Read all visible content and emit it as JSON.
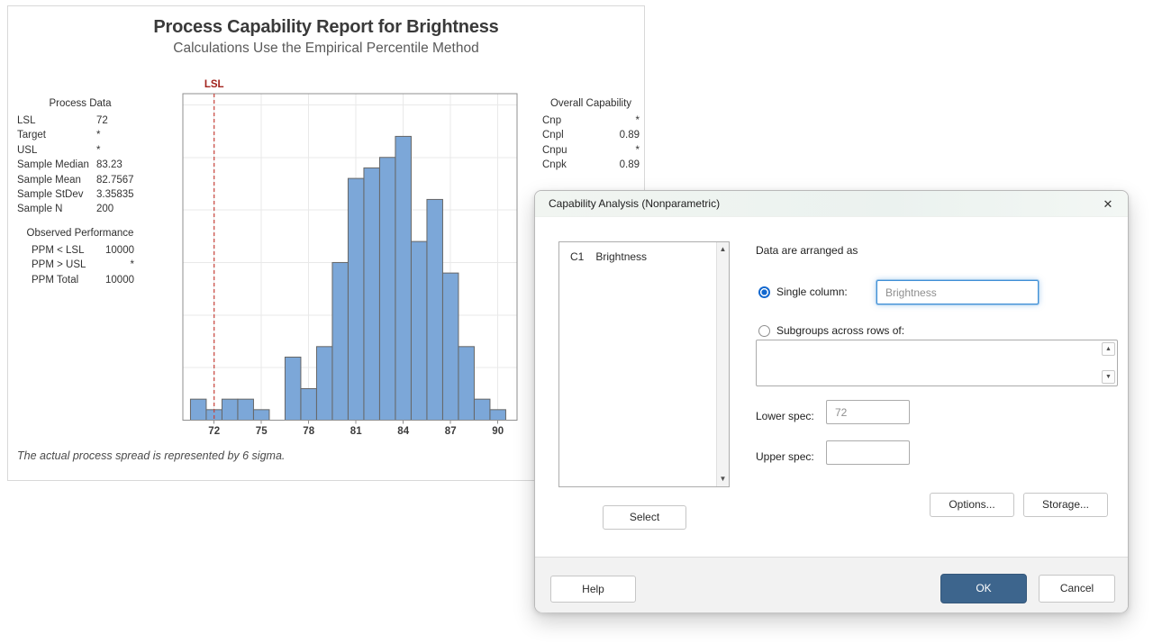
{
  "report": {
    "title": "Process Capability Report for Brightness",
    "subtitle": "Calculations Use the Empirical Percentile Method",
    "footnote": "The actual process spread is represented by 6 sigma.",
    "lsl_flag": "LSL",
    "process_data": {
      "header": "Process Data",
      "rows": [
        {
          "label": "LSL",
          "value": "72"
        },
        {
          "label": "Target",
          "value": "*"
        },
        {
          "label": "USL",
          "value": "*"
        },
        {
          "label": "Sample Median",
          "value": "83.23"
        },
        {
          "label": "Sample Mean",
          "value": "82.7567"
        },
        {
          "label": "Sample StDev",
          "value": "3.35835"
        },
        {
          "label": "Sample N",
          "value": "200"
        }
      ]
    },
    "observed_performance": {
      "header": "Observed Performance",
      "rows": [
        {
          "label": "PPM < LSL",
          "value": "10000"
        },
        {
          "label": "PPM > USL",
          "value": "*"
        },
        {
          "label": "PPM Total",
          "value": "10000"
        }
      ]
    },
    "overall_capability": {
      "header": "Overall Capability",
      "rows": [
        {
          "label": "Cnp",
          "value": "*"
        },
        {
          "label": "Cnpl",
          "value": "0.89"
        },
        {
          "label": "Cnpu",
          "value": "*"
        },
        {
          "label": "Cnpk",
          "value": "0.89"
        }
      ]
    }
  },
  "chart_data": {
    "type": "bar",
    "title": "Process Capability Report for Brightness",
    "subtitle": "Calculations Use the Empirical Percentile Method",
    "xlabel": "",
    "ylabel": "",
    "categories": [
      71,
      72,
      73,
      74,
      75,
      76,
      77,
      78,
      79,
      80,
      81,
      82,
      83,
      84,
      85,
      86,
      87,
      88,
      89,
      90
    ],
    "values": [
      2,
      1,
      2,
      2,
      1,
      0,
      6,
      3,
      7,
      15,
      23,
      24,
      25,
      27,
      17,
      21,
      14,
      7,
      2,
      1
    ],
    "bin_width": 1,
    "x_ticks": [
      72,
      75,
      78,
      81,
      84,
      87,
      90
    ],
    "y_gridline_step": 5,
    "ylim": [
      0,
      31
    ],
    "lsl": 72,
    "grid": "on",
    "legend": "none",
    "colors": {
      "bar_fill": "#7CA7D8",
      "bar_stroke": "#666666",
      "lsl_line": "#C8423A",
      "lsl_text": "#A2231D",
      "gridline": "#E9E9E9",
      "axis": "#8F8F8F",
      "tick_text": "#3D3D3D"
    }
  },
  "dialog": {
    "title": "Capability Analysis (Nonparametric)",
    "close_glyph": "✕",
    "columns": [
      {
        "id": "C1",
        "name": "Brightness"
      }
    ],
    "arranged_label": "Data are arranged as",
    "single_column": {
      "label": "Single column:",
      "value": "Brightness"
    },
    "subgroups": {
      "label": "Subgroups across rows of:",
      "value": ""
    },
    "lower_spec": {
      "label": "Lower spec:",
      "value": "72"
    },
    "upper_spec": {
      "label": "Upper spec:",
      "value": ""
    },
    "buttons": {
      "select": "Select",
      "options": "Options...",
      "storage": "Storage...",
      "help": "Help",
      "ok": "OK",
      "cancel": "Cancel"
    }
  }
}
